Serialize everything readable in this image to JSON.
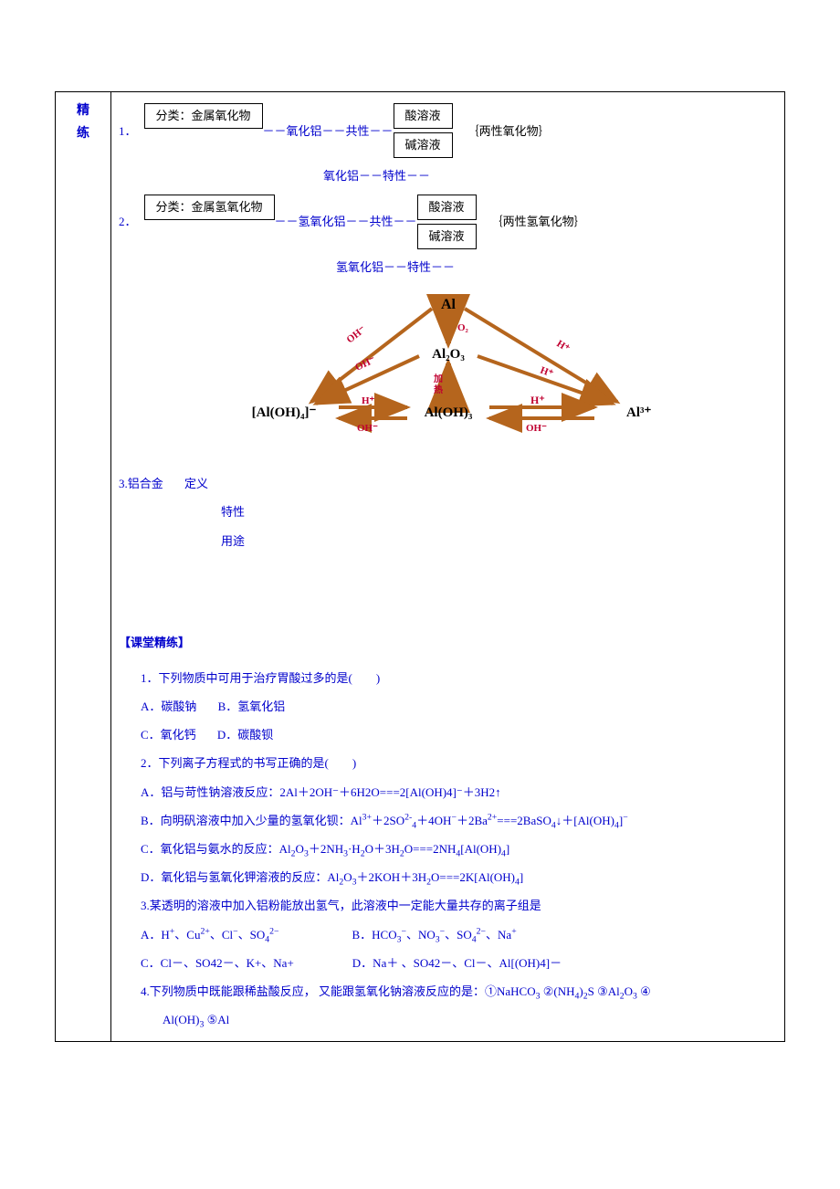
{
  "sidebar": {
    "line1": "精",
    "line2": "练"
  },
  "item1": {
    "num": "1．",
    "box1": "分类：金属氧化物",
    "conn1": "－－氧化铝－－共性－－",
    "box2a": "酸溶液",
    "box2b": "碱溶液",
    "note": "｛两性氧化物｝",
    "line2": "氧化铝－－特性－－"
  },
  "item2": {
    "num": "2．",
    "box1": "分类：金属氢氧化物",
    "conn1": "－－氢氧化铝－－共性－－",
    "box2a": "酸溶液",
    "box2b": "碱溶液",
    "note": "｛两性氢氧化物｝",
    "line2": "氢氧化铝－－特性－－"
  },
  "diagram": {
    "nodes": {
      "al": "Al",
      "al2o3": "Al₂O₃",
      "aloh3": "Al(OH)₃",
      "al3": "Al³⁺",
      "aloh4": "[Al(OH)₄]⁻",
      "heat": "加\n热"
    },
    "edge_labels": {
      "o2": "O₂",
      "oh": "OH⁻",
      "h": "H⁺"
    },
    "colors": {
      "node_text": "#000000",
      "arrow": "#b5651d",
      "edge_label": "#c00030",
      "heat": "#c00030"
    }
  },
  "item3": {
    "heading": "3.铝合金",
    "a": "定义",
    "b": "特性",
    "c": "用途"
  },
  "practice": {
    "title": "【课堂精练】",
    "q1": {
      "stem": "1．下列物质中可用于治疗胃酸过多的是(　　)",
      "optA": "A．碳酸钠",
      "optB": "B．氢氧化铝",
      "optC": "C．氧化钙",
      "optD": "D．碳酸钡"
    },
    "q2": {
      "stem": "2．下列离子方程式的书写正确的是(　　)",
      "optA": "A．铝与苛性钠溶液反应：2Al＋2OH⁻＋6H2O===2[Al(OH)4]⁻＋3H2↑",
      "optB_pre": "B．向明矾溶液中加入少量的氢氧化钡：Al",
      "optB_html": "<sup>3+</sup>＋2SO<sup>2-</sup><sub>4</sub>＋4OH<sup>−</sup>＋2Ba<sup>2+</sup>===2BaSO<sub>4</sub>↓＋[Al(OH)<sub>4</sub>]<sup>−</sup>",
      "optC_pre": "C．氧化铝与氨水的反应：Al",
      "optC_html": "<sub>2</sub>O<sub>3</sub>＋2NH<sub>3</sub>·H<sub>2</sub>O＋3H<sub>2</sub>O===2NH<sub>4</sub>[Al(OH)<sub>4</sub>]",
      "optD_pre": "D．氧化铝与氢氧化钾溶液的反应：Al",
      "optD_html": "<sub>2</sub>O<sub>3</sub>＋2KOH＋3H<sub>2</sub>O===2K[Al(OH)<sub>4</sub>]"
    },
    "q3": {
      "stem": "3.某透明的溶液中加入铝粉能放出氢气，此溶液中一定能大量共存的离子组是",
      "optA_pre": "A．H",
      "optA_html": "<sup>+</sup>、Cu<sup>2+</sup>、Cl<sup>−</sup>、SO<sub>4</sub><sup>2−</sup>",
      "optB_pre": "B．HCO",
      "optB_html": "<sub>3</sub><sup>−</sup>、NO<sub>3</sub><sup>−</sup>、SO<sub>4</sub><sup>2−</sup>、Na<sup>+</sup>",
      "optC": "C．Cl－、SO42－、K+、Na+",
      "optD": "D．Na＋ 、SO42－、Cl－、Al[(OH)4]－"
    },
    "q4": {
      "stem_pre": "4.下列物质中既能跟稀盐酸反应， 又能跟氢氧化钠溶液反应的是：①NaHCO",
      "stem_html": "<sub>3</sub> ②(NH<sub>4</sub>)<sub>2</sub>S ③Al<sub>2</sub>O<sub>3</sub> ④",
      "line2_pre": "Al(OH)",
      "line2_html": "<sub>3</sub> ⑤Al"
    }
  }
}
